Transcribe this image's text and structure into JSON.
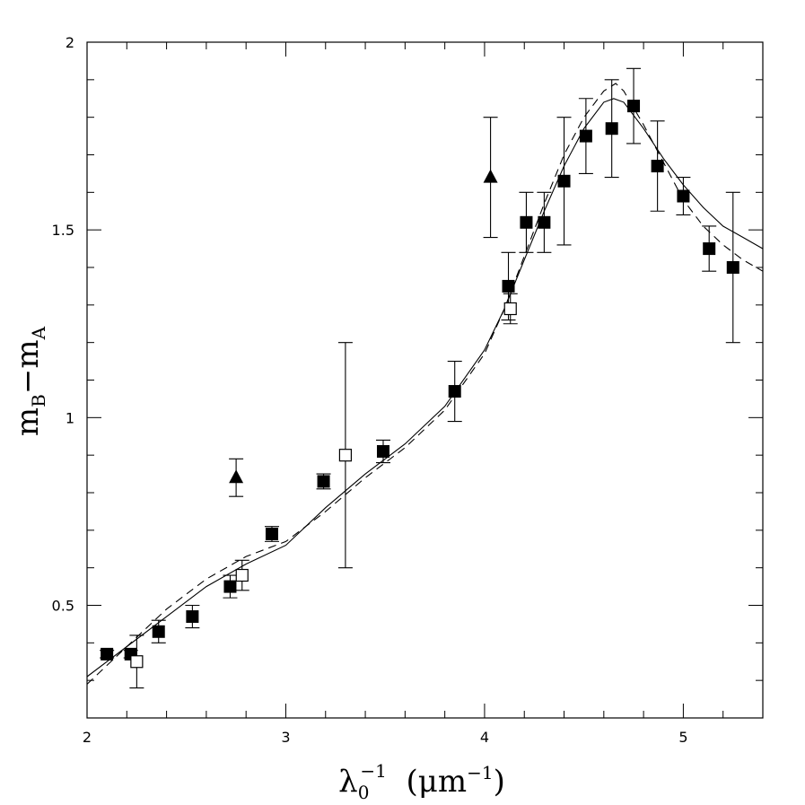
{
  "chart_data": {
    "type": "scatter",
    "title": "",
    "xlabel": {
      "main": "λ",
      "sub": "0",
      "sup": "−1",
      "rest": "  (μm",
      "rest_sup": "−1",
      "close": ")"
    },
    "ylabel": {
      "main": "m",
      "sub1": "B",
      "mid": "−m",
      "sub2": "A"
    },
    "xlim": [
      2,
      5.4
    ],
    "ylim": [
      0.2,
      2.0
    ],
    "x_ticks": [
      "2",
      "3",
      "4",
      "5"
    ],
    "x_tick_values": [
      2,
      3,
      4,
      5
    ],
    "y_ticks": [
      "0.5",
      "1",
      "1.5",
      "2"
    ],
    "y_tick_values": [
      0.5,
      1,
      1.5,
      2
    ],
    "x_minor_step": 0.2,
    "y_minor_step": 0.1,
    "grid": false,
    "series": [
      {
        "name": "filled-squares",
        "marker": "square-filled",
        "points": [
          {
            "x": 2.1,
            "y": 0.37,
            "lo": 0.36,
            "hi": 0.38
          },
          {
            "x": 2.22,
            "y": 0.37,
            "lo": 0.36,
            "hi": 0.38
          },
          {
            "x": 2.36,
            "y": 0.43,
            "lo": 0.4,
            "hi": 0.46
          },
          {
            "x": 2.53,
            "y": 0.47,
            "lo": 0.44,
            "hi": 0.5
          },
          {
            "x": 2.72,
            "y": 0.55,
            "lo": 0.52,
            "hi": 0.58
          },
          {
            "x": 2.93,
            "y": 0.69,
            "lo": 0.67,
            "hi": 0.71
          },
          {
            "x": 3.19,
            "y": 0.83,
            "lo": 0.81,
            "hi": 0.85
          },
          {
            "x": 3.49,
            "y": 0.91,
            "lo": 0.88,
            "hi": 0.94
          },
          {
            "x": 3.85,
            "y": 1.07,
            "lo": 0.99,
            "hi": 1.15
          },
          {
            "x": 4.12,
            "y": 1.35,
            "lo": 1.26,
            "hi": 1.44
          },
          {
            "x": 4.21,
            "y": 1.52,
            "lo": 1.44,
            "hi": 1.6
          },
          {
            "x": 4.3,
            "y": 1.52,
            "lo": 1.44,
            "hi": 1.6
          },
          {
            "x": 4.4,
            "y": 1.63,
            "lo": 1.46,
            "hi": 1.8
          },
          {
            "x": 4.51,
            "y": 1.75,
            "lo": 1.65,
            "hi": 1.85
          },
          {
            "x": 4.64,
            "y": 1.77,
            "lo": 1.64,
            "hi": 1.9
          },
          {
            "x": 4.75,
            "y": 1.83,
            "lo": 1.73,
            "hi": 1.93
          },
          {
            "x": 4.87,
            "y": 1.67,
            "lo": 1.55,
            "hi": 1.79
          },
          {
            "x": 5.0,
            "y": 1.59,
            "lo": 1.54,
            "hi": 1.64
          },
          {
            "x": 5.13,
            "y": 1.45,
            "lo": 1.39,
            "hi": 1.51
          },
          {
            "x": 5.25,
            "y": 1.4,
            "lo": 1.2,
            "hi": 1.6
          }
        ]
      },
      {
        "name": "open-squares",
        "marker": "square-open",
        "points": [
          {
            "x": 2.25,
            "y": 0.35,
            "lo": 0.28,
            "hi": 0.42
          },
          {
            "x": 2.78,
            "y": 0.58,
            "lo": 0.54,
            "hi": 0.62
          },
          {
            "x": 3.3,
            "y": 0.9,
            "lo": 0.6,
            "hi": 1.2
          },
          {
            "x": 4.13,
            "y": 1.29,
            "lo": 1.25,
            "hi": 1.33
          }
        ]
      },
      {
        "name": "triangles",
        "marker": "triangle-filled",
        "points": [
          {
            "x": 2.75,
            "y": 0.84,
            "lo": 0.79,
            "hi": 0.89
          },
          {
            "x": 4.03,
            "y": 1.64,
            "lo": 1.48,
            "hi": 1.8
          }
        ]
      }
    ],
    "curves": [
      {
        "name": "solid-model",
        "style": "solid",
        "x": [
          2.0,
          2.2,
          2.4,
          2.6,
          2.8,
          3.0,
          3.2,
          3.4,
          3.6,
          3.8,
          4.0,
          4.1,
          4.2,
          4.3,
          4.4,
          4.5,
          4.6,
          4.65,
          4.7,
          4.8,
          4.9,
          5.0,
          5.1,
          5.2,
          5.3,
          5.4
        ],
        "y": [
          0.31,
          0.39,
          0.47,
          0.55,
          0.61,
          0.66,
          0.76,
          0.85,
          0.93,
          1.03,
          1.18,
          1.29,
          1.42,
          1.55,
          1.67,
          1.77,
          1.84,
          1.85,
          1.84,
          1.77,
          1.69,
          1.62,
          1.56,
          1.51,
          1.48,
          1.45
        ]
      },
      {
        "name": "dashed-model",
        "style": "dashed",
        "x": [
          2.0,
          2.2,
          2.4,
          2.6,
          2.8,
          3.0,
          3.2,
          3.4,
          3.6,
          3.8,
          4.0,
          4.1,
          4.2,
          4.3,
          4.4,
          4.5,
          4.6,
          4.66,
          4.7,
          4.8,
          4.9,
          5.0,
          5.1,
          5.2,
          5.3,
          5.4
        ],
        "y": [
          0.29,
          0.39,
          0.49,
          0.57,
          0.63,
          0.67,
          0.75,
          0.84,
          0.92,
          1.02,
          1.17,
          1.29,
          1.43,
          1.57,
          1.7,
          1.8,
          1.87,
          1.89,
          1.87,
          1.78,
          1.68,
          1.58,
          1.51,
          1.46,
          1.42,
          1.39
        ]
      }
    ]
  }
}
